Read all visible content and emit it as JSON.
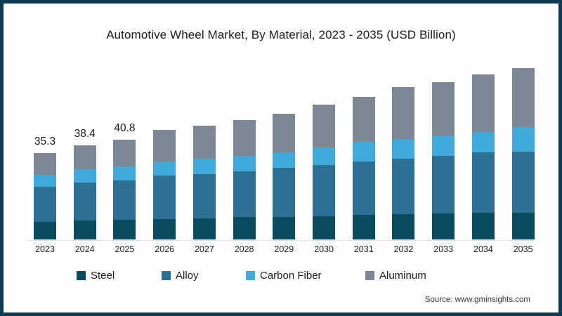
{
  "chart_data": {
    "type": "bar",
    "stacked": true,
    "title": "Automotive Wheel Market, By Material, 2023 - 2035 (USD Billion)",
    "xlabel": "",
    "ylabel": "",
    "grid": false,
    "legend_position": "bottom",
    "ylim": [
      0,
      75
    ],
    "categories": [
      "2023",
      "2024",
      "2025",
      "2026",
      "2027",
      "2028",
      "2029",
      "2030",
      "2031",
      "2032",
      "2033",
      "2034",
      "2035"
    ],
    "series": [
      {
        "name": "Steel",
        "color": "#0c4a5f",
        "values": [
          7.2,
          7.8,
          8.0,
          8.2,
          8.6,
          9.1,
          9.2,
          9.6,
          10.0,
          10.3,
          10.5,
          10.8,
          10.9
        ]
      },
      {
        "name": "Alloy",
        "color": "#2e7093",
        "values": [
          14.3,
          15.5,
          16.1,
          17.9,
          18.1,
          18.7,
          20.1,
          20.7,
          21.8,
          22.7,
          23.7,
          24.9,
          24.9
        ]
      },
      {
        "name": "Carbon Fiber",
        "color": "#41aadd",
        "values": [
          4.8,
          5.4,
          5.7,
          5.7,
          6.3,
          6.3,
          6.4,
          7.2,
          8.1,
          8.1,
          8.2,
          8.2,
          10.0
        ]
      },
      {
        "name": "Aluminum",
        "color": "#7b8795",
        "values": [
          9.0,
          9.7,
          11.0,
          12.9,
          13.4,
          14.8,
          15.7,
          17.5,
          18.3,
          21.1,
          21.9,
          23.5,
          24.3
        ]
      }
    ],
    "totals": [
      35.3,
      38.4,
      40.8,
      44.7,
      46.4,
      48.9,
      51.4,
      55.0,
      58.2,
      62.2,
      64.3,
      67.4,
      70.1
    ],
    "data_labels_shown": [
      "35.3",
      "38.4",
      "40.8"
    ]
  },
  "source": {
    "text": "Source: www.gminsights.com"
  },
  "colors": {
    "frame_border": "#0d3a52",
    "axis_line": "#e4e4e4",
    "title_text": "#1c1c1c"
  }
}
